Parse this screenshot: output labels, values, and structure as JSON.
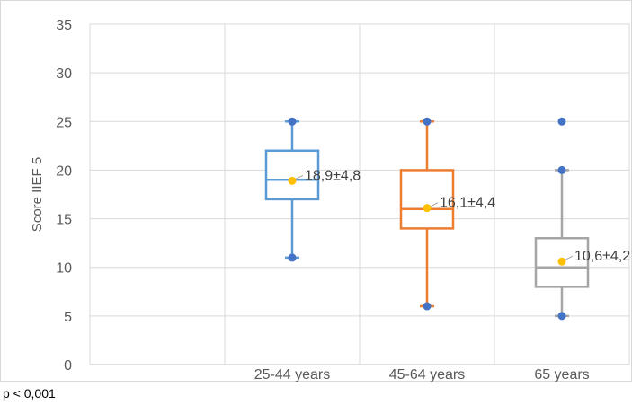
{
  "chart_data": {
    "type": "box",
    "title": "",
    "xlabel": "",
    "ylabel": "Score IIEF 5",
    "ylim": [
      0,
      35
    ],
    "yticks": [
      0,
      5,
      10,
      15,
      20,
      25,
      30,
      35
    ],
    "grid": true,
    "categories": [
      "25-44 years",
      "45-64 years",
      "65 years"
    ],
    "boxes": [
      {
        "category": "25-44 years",
        "color": "#5b9bd5",
        "min": 11,
        "q1": 17,
        "median": 19,
        "q3": 22,
        "max": 25,
        "mean": 18.9,
        "outliers": [],
        "label": "18,9±4,8"
      },
      {
        "category": "45-64 years",
        "color": "#ed7d31",
        "min": 6,
        "q1": 14,
        "median": 16,
        "q3": 20,
        "max": 25,
        "mean": 16.1,
        "outliers": [],
        "label": "16,1±4,4"
      },
      {
        "category": "65 years",
        "color": "#a5a5a5",
        "min": 5,
        "q1": 8,
        "median": 10,
        "q3": 13,
        "max": 20,
        "mean": 10.6,
        "outliers": [
          25
        ],
        "label": "10,6±4,2"
      }
    ],
    "marker_colors": {
      "whisker_point": "#4472c4",
      "mean_point": "#ffc000"
    }
  },
  "footnote": "p < 0,001"
}
